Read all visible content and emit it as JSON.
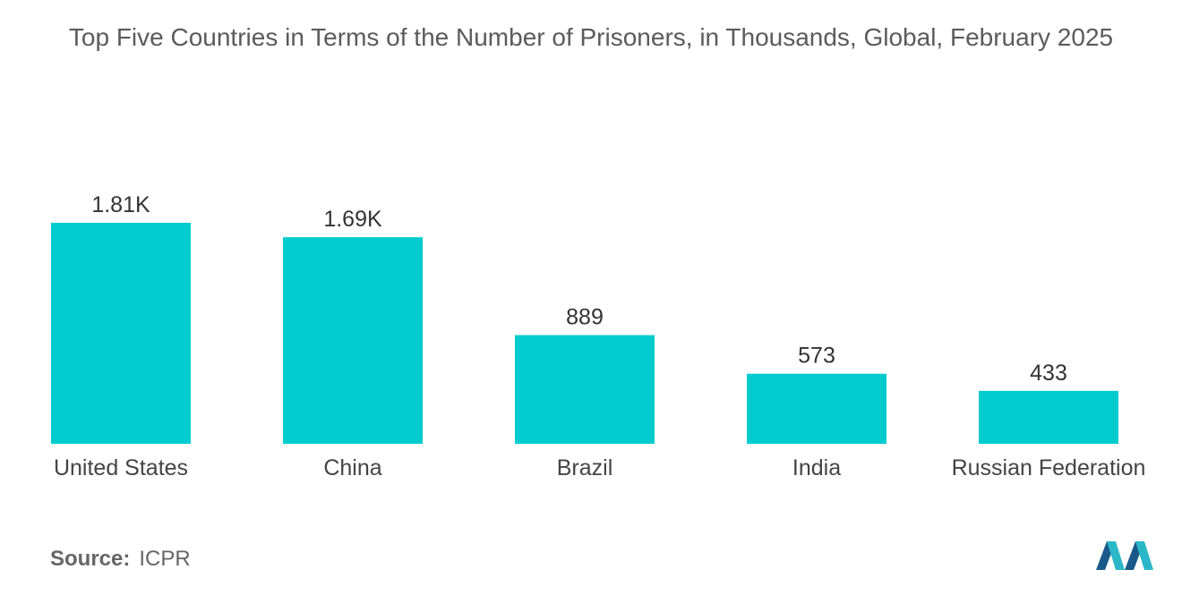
{
  "chart_data": {
    "type": "bar",
    "title": "Top Five Countries in Terms of the Number of Prisoners, in Thousands, Global, February 2025",
    "categories": [
      "United States",
      "China",
      "Brazil",
      "India",
      "Russian Federation"
    ],
    "values": [
      1808,
      1690,
      889,
      573,
      433
    ],
    "data_labels": [
      "1.81K",
      "1.69K",
      "889",
      "573",
      "433"
    ],
    "xlabel": "",
    "ylabel": "",
    "ylim": [
      0,
      1808
    ],
    "grid": false,
    "legend": "none",
    "bar_color": "#00cccf"
  },
  "source": {
    "label": "Source:",
    "value": "ICPR"
  },
  "colors": {
    "title": "#5b5b5b",
    "tick_label": "#444444",
    "data_label": "#333333",
    "logo_dark": "#1a5a8a",
    "logo_light": "#2ab8c8"
  }
}
